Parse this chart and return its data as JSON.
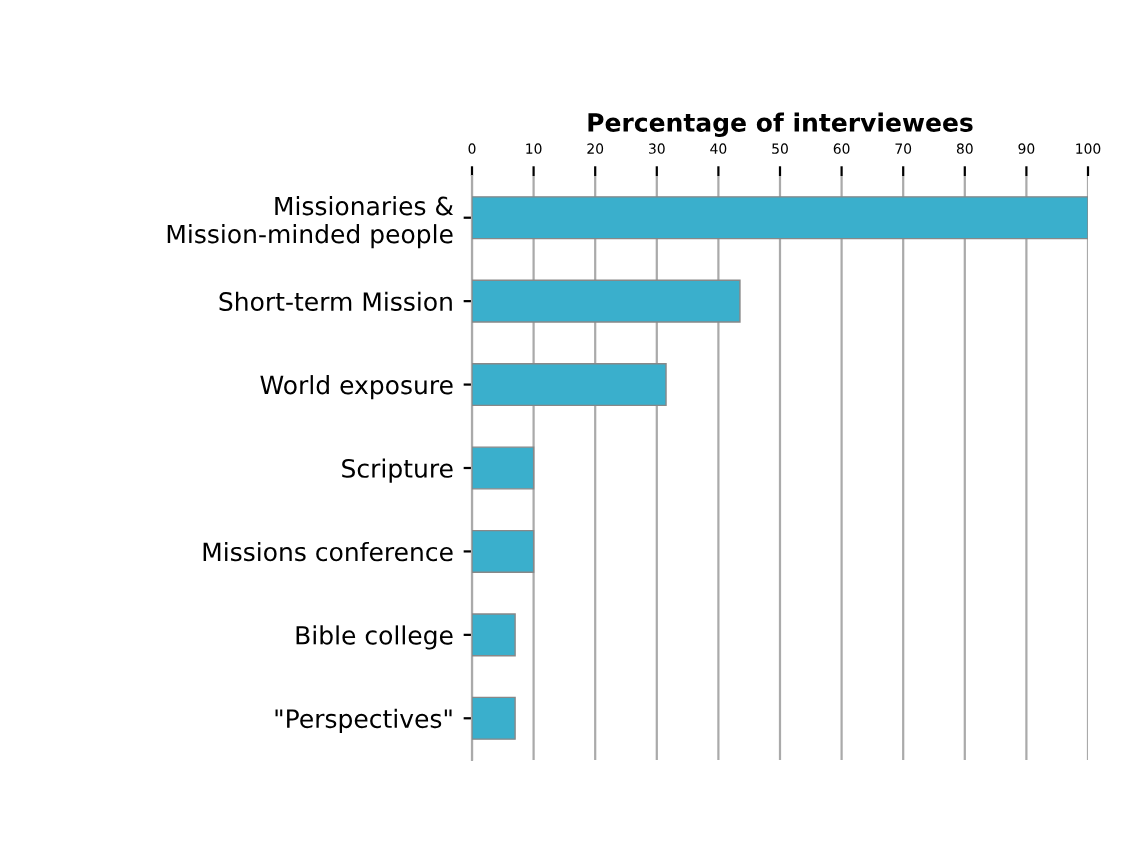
{
  "chart_data": {
    "type": "bar",
    "orientation": "horizontal",
    "title": "Percentage of interviewees",
    "categories": [
      "Missionaries &\nMission-minded people",
      "Short-term Mission",
      "World exposure",
      "Scripture",
      "Missions conference",
      "Bible college",
      "\"Perspectives\""
    ],
    "values": [
      100,
      43.5,
      31.5,
      10,
      10,
      7,
      7
    ],
    "color": "#3aafcc",
    "xlim": [
      0,
      100
    ],
    "xticks": [
      0,
      10,
      20,
      30,
      40,
      50,
      60,
      70,
      80,
      90,
      100
    ],
    "grid": "x"
  }
}
